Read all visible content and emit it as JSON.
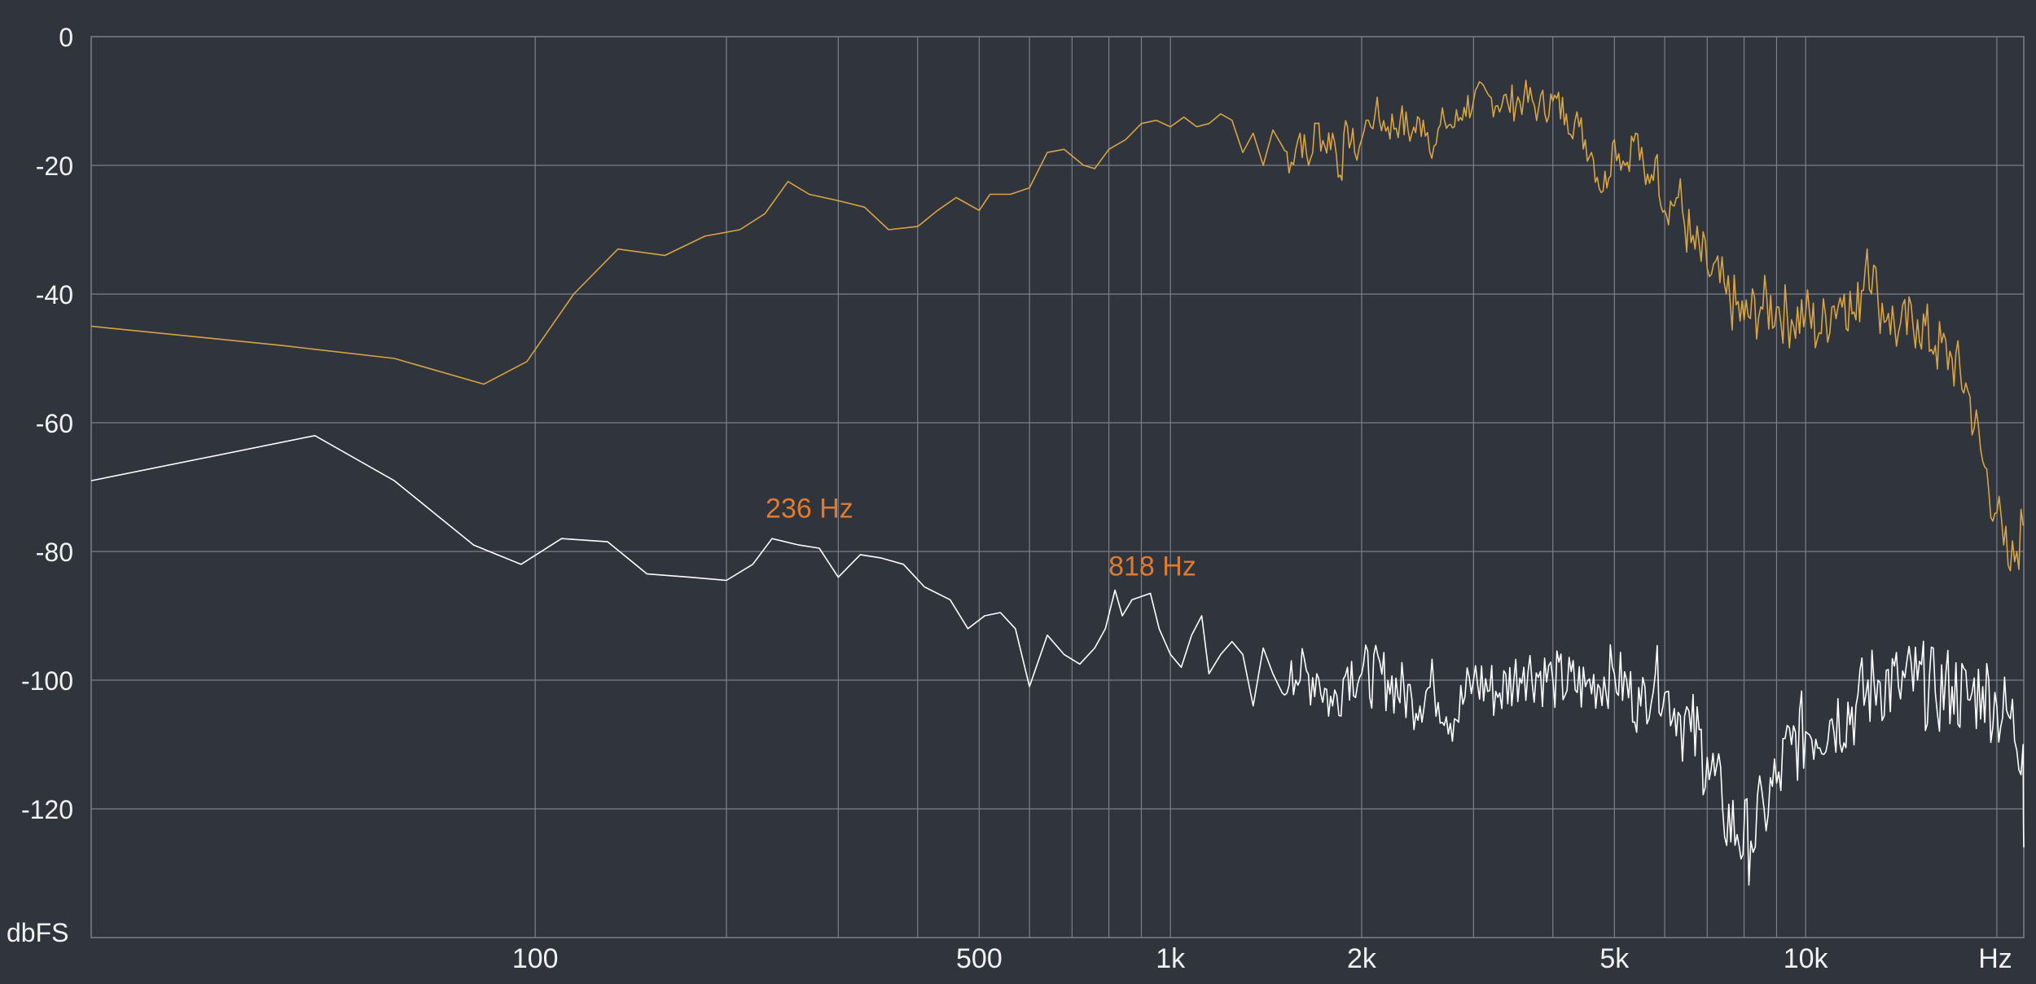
{
  "colors": {
    "background": "#2f343d",
    "grid": "#7b8089",
    "text": "#f2f2f2",
    "peak_label": "#e07a2e"
  },
  "chart_data": {
    "type": "line",
    "x_scale": "log",
    "xlim": [
      20,
      22050
    ],
    "ylim": [
      -140,
      0
    ],
    "y_ticks": [
      "0",
      "-20",
      "-40",
      "-60",
      "-80",
      "-100",
      "-120"
    ],
    "y_tick_values": [
      0,
      -20,
      -40,
      -60,
      -80,
      -100,
      -120
    ],
    "y_unit": "dbFS",
    "x_unit": "Hz",
    "x_tick_labels": [
      {
        "value": 100,
        "label": "100"
      },
      {
        "value": 500,
        "label": "500"
      },
      {
        "value": 1000,
        "label": "1k"
      },
      {
        "value": 2000,
        "label": "2k"
      },
      {
        "value": 5000,
        "label": "5k"
      },
      {
        "value": 10000,
        "label": "10k"
      }
    ],
    "x_gridlines": [
      100,
      200,
      300,
      400,
      500,
      600,
      700,
      800,
      900,
      1000,
      2000,
      3000,
      4000,
      5000,
      6000,
      7000,
      8000,
      9000,
      10000,
      20000
    ],
    "grid": true,
    "annotations": [
      {
        "text": "236 Hz",
        "x": 236,
        "y": -77
      },
      {
        "text": "818 Hz",
        "x": 818,
        "y": -86
      }
    ],
    "series": [
      {
        "color": "#d9a441",
        "points": [
          [
            20,
            -45
          ],
          [
            40,
            -48
          ],
          [
            60,
            -50
          ],
          [
            83,
            -54
          ],
          [
            97,
            -50.5
          ],
          [
            115,
            -40
          ],
          [
            135,
            -33
          ],
          [
            160,
            -34
          ],
          [
            185,
            -31
          ],
          [
            210,
            -30
          ],
          [
            230,
            -27.5
          ],
          [
            250,
            -22.5
          ],
          [
            270,
            -24.5
          ],
          [
            300,
            -25.5
          ],
          [
            330,
            -26.5
          ],
          [
            360,
            -30
          ],
          [
            400,
            -29.5
          ],
          [
            430,
            -27
          ],
          [
            460,
            -25
          ],
          [
            500,
            -27
          ],
          [
            520,
            -24.5
          ],
          [
            560,
            -24.5
          ],
          [
            600,
            -23.5
          ],
          [
            640,
            -18
          ],
          [
            680,
            -17.5
          ],
          [
            730,
            -20
          ],
          [
            760,
            -20.5
          ],
          [
            800,
            -17.5
          ],
          [
            850,
            -16
          ],
          [
            900,
            -13.5
          ],
          [
            950,
            -13
          ],
          [
            1000,
            -14
          ],
          [
            1050,
            -12.5
          ],
          [
            1100,
            -14
          ],
          [
            1150,
            -13.5
          ],
          [
            1200,
            -12
          ],
          [
            1250,
            -13
          ],
          [
            1300,
            -18
          ],
          [
            1350,
            -15
          ],
          [
            1400,
            -20
          ],
          [
            1450,
            -14.5
          ],
          [
            1500,
            -17
          ],
          [
            1550,
            -19.5
          ],
          [
            1600,
            -15
          ],
          [
            1650,
            -20
          ],
          [
            1700,
            -13.5
          ],
          [
            1750,
            -17
          ],
          [
            1800,
            -15
          ],
          [
            1850,
            -21.5
          ],
          [
            1900,
            -14
          ],
          [
            1950,
            -18
          ],
          [
            2000,
            -16
          ],
          [
            2050,
            -13
          ],
          [
            2100,
            -12
          ],
          [
            2200,
            -14
          ],
          [
            2300,
            -13
          ],
          [
            2400,
            -15
          ],
          [
            2500,
            -13
          ],
          [
            2600,
            -17
          ],
          [
            2700,
            -13
          ],
          [
            2800,
            -14
          ],
          [
            2900,
            -11
          ],
          [
            3000,
            -10
          ],
          [
            3200,
            -9.5
          ],
          [
            3400,
            -10.5
          ],
          [
            3600,
            -9.5
          ],
          [
            3800,
            -11
          ],
          [
            4000,
            -10
          ],
          [
            4200,
            -12
          ],
          [
            4400,
            -14
          ],
          [
            4600,
            -18
          ],
          [
            4800,
            -24
          ],
          [
            5000,
            -16
          ],
          [
            5200,
            -20
          ],
          [
            5400,
            -15
          ],
          [
            5600,
            -23
          ],
          [
            5800,
            -19
          ],
          [
            6000,
            -27
          ],
          [
            6300,
            -25
          ],
          [
            6600,
            -32
          ],
          [
            7000,
            -36
          ],
          [
            7500,
            -40
          ],
          [
            8000,
            -44
          ],
          [
            8500,
            -42
          ],
          [
            9000,
            -42
          ],
          [
            9500,
            -44
          ],
          [
            10000,
            -43
          ],
          [
            10500,
            -46
          ],
          [
            11000,
            -42
          ],
          [
            11500,
            -40
          ],
          [
            12000,
            -44
          ],
          [
            12500,
            -33
          ],
          [
            13000,
            -41
          ],
          [
            13500,
            -43
          ],
          [
            14000,
            -46
          ],
          [
            15000,
            -44
          ],
          [
            16000,
            -48
          ],
          [
            17000,
            -50
          ],
          [
            18000,
            -55
          ],
          [
            19000,
            -66
          ],
          [
            20000,
            -74
          ],
          [
            20500,
            -79
          ],
          [
            21000,
            -83
          ],
          [
            21500,
            -80
          ],
          [
            22000,
            -76
          ]
        ]
      },
      {
        "color": "#ffffff",
        "points": [
          [
            20,
            -69
          ],
          [
            45,
            -62
          ],
          [
            60,
            -69
          ],
          [
            80,
            -79
          ],
          [
            95,
            -82
          ],
          [
            110,
            -78
          ],
          [
            130,
            -78.5
          ],
          [
            150,
            -83.5
          ],
          [
            175,
            -84
          ],
          [
            200,
            -84.5
          ],
          [
            220,
            -82
          ],
          [
            236,
            -78
          ],
          [
            260,
            -79
          ],
          [
            280,
            -79.5
          ],
          [
            300,
            -84
          ],
          [
            325,
            -80.5
          ],
          [
            350,
            -81
          ],
          [
            380,
            -82
          ],
          [
            410,
            -85.5
          ],
          [
            450,
            -87.5
          ],
          [
            480,
            -92
          ],
          [
            510,
            -90
          ],
          [
            540,
            -89.5
          ],
          [
            570,
            -92
          ],
          [
            600,
            -101
          ],
          [
            640,
            -93
          ],
          [
            680,
            -96
          ],
          [
            720,
            -97.5
          ],
          [
            760,
            -95
          ],
          [
            790,
            -92
          ],
          [
            818,
            -86
          ],
          [
            840,
            -90
          ],
          [
            870,
            -87.5
          ],
          [
            900,
            -87
          ],
          [
            930,
            -86.5
          ],
          [
            960,
            -92
          ],
          [
            1000,
            -96
          ],
          [
            1040,
            -98
          ],
          [
            1080,
            -93
          ],
          [
            1120,
            -90
          ],
          [
            1150,
            -99
          ],
          [
            1200,
            -96
          ],
          [
            1250,
            -94
          ],
          [
            1300,
            -96
          ],
          [
            1350,
            -104
          ],
          [
            1400,
            -95
          ],
          [
            1450,
            -99
          ],
          [
            1500,
            -102
          ],
          [
            1550,
            -97
          ],
          [
            1600,
            -100
          ],
          [
            1700,
            -99
          ],
          [
            1800,
            -104
          ],
          [
            1900,
            -98
          ],
          [
            2000,
            -99
          ],
          [
            2200,
            -100
          ],
          [
            2400,
            -103
          ],
          [
            2600,
            -101
          ],
          [
            2800,
            -106
          ],
          [
            3000,
            -100
          ],
          [
            3300,
            -102
          ],
          [
            3600,
            -98
          ],
          [
            4000,
            -100
          ],
          [
            4500,
            -101
          ],
          [
            5000,
            -99
          ],
          [
            5500,
            -104
          ],
          [
            5800,
            -99
          ],
          [
            6000,
            -102
          ],
          [
            6300,
            -105
          ],
          [
            6600,
            -108
          ],
          [
            7000,
            -112
          ],
          [
            7400,
            -120
          ],
          [
            7800,
            -124
          ],
          [
            8200,
            -125
          ],
          [
            8600,
            -120
          ],
          [
            9000,
            -116
          ],
          [
            9500,
            -110
          ],
          [
            10000,
            -108
          ],
          [
            11000,
            -106
          ],
          [
            12000,
            -104
          ],
          [
            13000,
            -100
          ],
          [
            14000,
            -101
          ],
          [
            15000,
            -100
          ],
          [
            16000,
            -102
          ],
          [
            17000,
            -101
          ],
          [
            18000,
            -103
          ],
          [
            19000,
            -101
          ],
          [
            20000,
            -104
          ],
          [
            21000,
            -106
          ],
          [
            22000,
            -110
          ],
          [
            22050,
            -126
          ]
        ]
      }
    ]
  }
}
